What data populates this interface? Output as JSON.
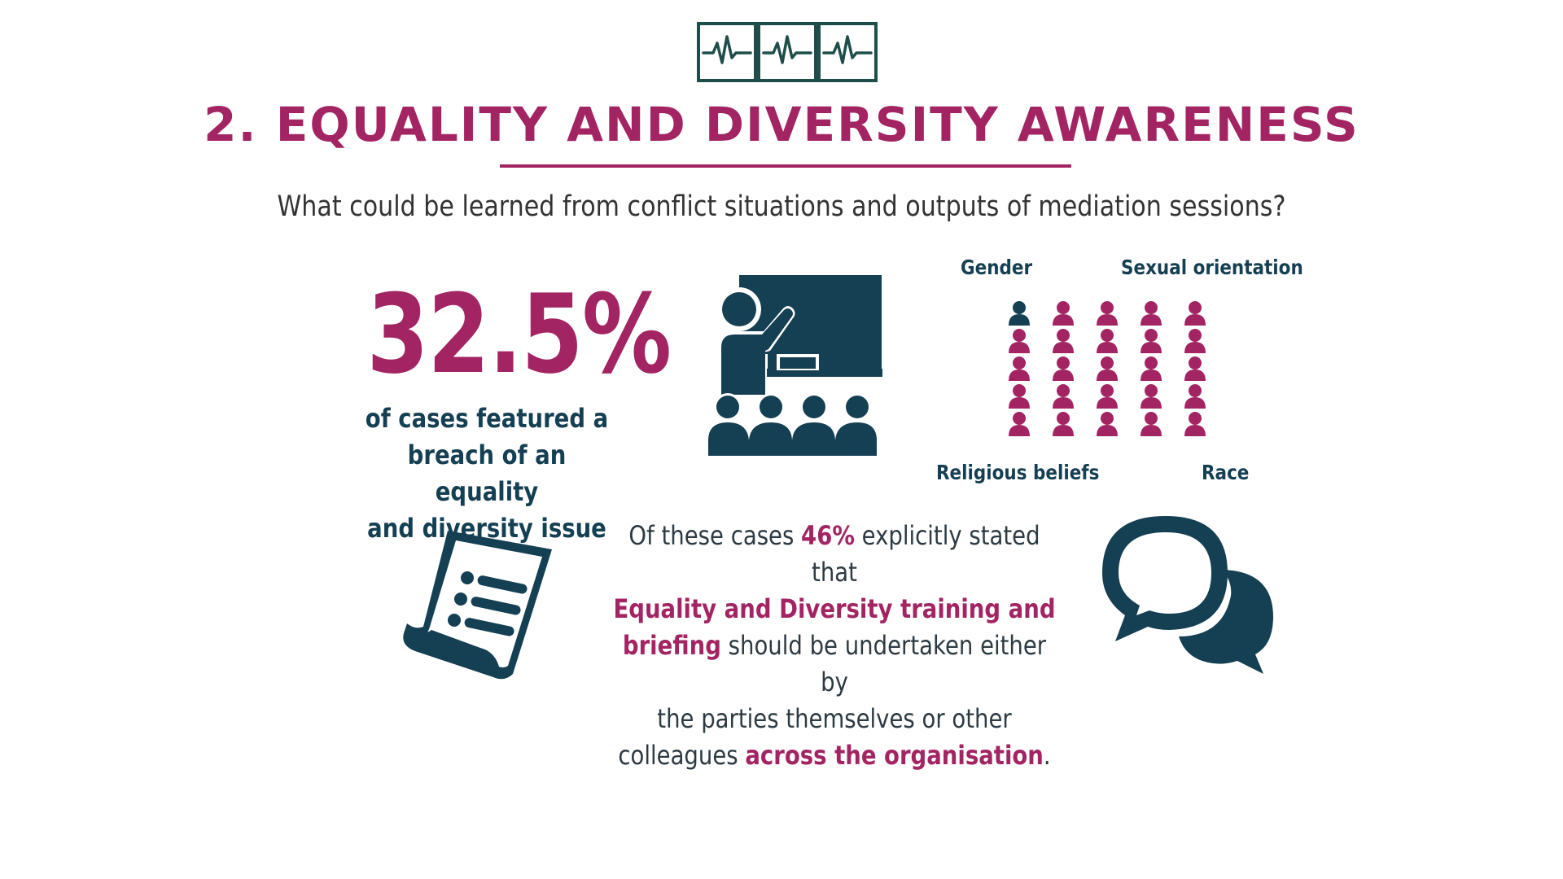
{
  "header": {
    "logo_icon": "heartbeat-monitor-icon",
    "title": "2. EQUALITY AND DIVERSITY AWARENESS",
    "subtitle": "What could be learned from conflict situations and outputs of mediation sessions?"
  },
  "stat": {
    "value": "32.5%",
    "caption_line1": "of cases featured a",
    "caption_line2": "breach of an equality",
    "caption_line3": "and diversity issue"
  },
  "categories": {
    "gender": "Gender",
    "sexual_orientation": "Sexual orientation",
    "religious_beliefs": "Religious beliefs",
    "race": "Race"
  },
  "people_grid": {
    "columns": 5,
    "rows": 5,
    "highlighted": 1,
    "icon": "person-icon"
  },
  "finding": {
    "p1": "Of these cases ",
    "h1": "46%",
    "p2": " explicitly stated that",
    "h2a": "Equality and Diversity training and",
    "h2b": "briefing",
    "p3": " should be undertaken either by",
    "p4": "the parties themselves or other",
    "p5": "colleagues ",
    "h3": "across the organisation",
    "p6": "."
  },
  "icons": {
    "teacher": "classroom-teacher-icon",
    "document": "document-list-icon",
    "chat": "speech-bubbles-icon"
  },
  "colors": {
    "magenta": "#a32463",
    "navy": "#153f52",
    "grey": "#ffffff"
  }
}
